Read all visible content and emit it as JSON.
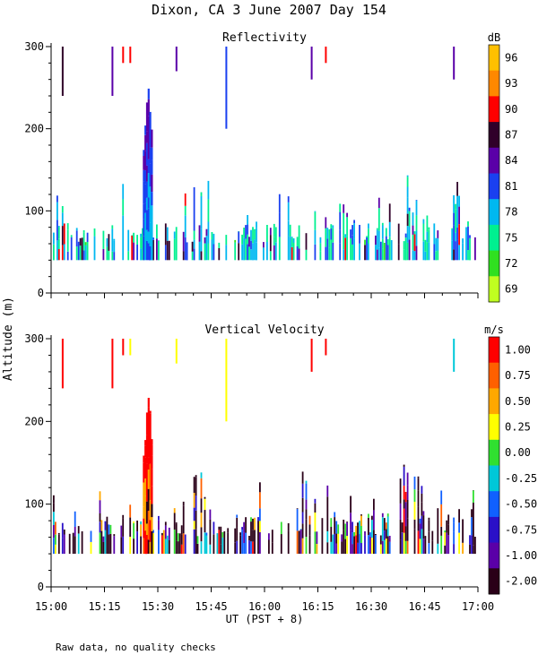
{
  "figure": {
    "title": "Dixon, CA  3 June 2007  Day 154",
    "footnote": "Raw data, no quality checks",
    "shared_ylabel": "Altitude (m)",
    "shared_xlabel": "UT  (PST + 8)"
  },
  "chart_data": [
    {
      "type": "heatmap",
      "title": "Reflectivity",
      "xlabel": "UT  (PST + 8)",
      "ylabel": "Altitude (m)",
      "x_ticks": [
        "15:00",
        "15:15",
        "15:30",
        "15:45",
        "16:00",
        "16:15",
        "16:30",
        "16:45",
        "17:00"
      ],
      "x_range_minutes_after_1500": [
        0,
        120
      ],
      "y_ticks": [
        0,
        100,
        200,
        300
      ],
      "ylim": [
        0,
        300
      ],
      "colorbar_unit": "dB",
      "colorbar_labels": [
        "96",
        "93",
        "90",
        "87",
        "84",
        "81",
        "78",
        "75",
        "72",
        "69"
      ],
      "colorbar_colors": [
        "#ffc000",
        "#ff8800",
        "#ff0000",
        "#30002a",
        "#5a00a8",
        "#1a40f0",
        "#00b8f0",
        "#00f090",
        "#30e020",
        "#c0ff20"
      ],
      "echo_layer_m": [
        40,
        120
      ],
      "plume_peak_m": 260,
      "plume_time_min": 27,
      "upper_echo_times_min": [
        3,
        17,
        20,
        22,
        35,
        49,
        73,
        77,
        113
      ]
    },
    {
      "type": "heatmap",
      "title": "Vertical Velocity",
      "xlabel": "UT  (PST + 8)",
      "ylabel": "Altitude (m)",
      "x_ticks": [
        "15:00",
        "15:15",
        "15:30",
        "15:45",
        "16:00",
        "16:15",
        "16:30",
        "16:45",
        "17:00"
      ],
      "x_range_minutes_after_1500": [
        0,
        120
      ],
      "y_ticks": [
        0,
        100,
        200,
        300
      ],
      "ylim": [
        0,
        300
      ],
      "colorbar_unit": "m/s",
      "colorbar_labels": [
        "1.00",
        "0.75",
        "0.50",
        "0.25",
        "0.00",
        "-0.25",
        "-0.50",
        "-0.75",
        "-1.00",
        "-2.00"
      ],
      "colorbar_colors": [
        "#ff0000",
        "#ff6000",
        "#ffa800",
        "#ffff00",
        "#30e030",
        "#00c8d8",
        "#1060ff",
        "#2a10c8",
        "#5a00a8",
        "#2a0018"
      ],
      "echo_layer_m": [
        40,
        120
      ],
      "plume_peak_m": 240,
      "plume_time_min": 27,
      "upper_echo_times_min": [
        3,
        17,
        20,
        22,
        35,
        49,
        73,
        77,
        113
      ]
    }
  ]
}
